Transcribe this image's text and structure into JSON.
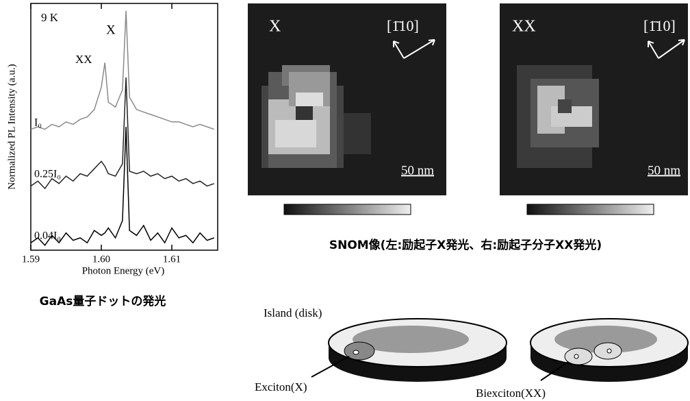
{
  "chart_data": {
    "type": "line",
    "xlabel": "Photon Energy (eV)",
    "ylabel": "Normalized PL Intensity (a.u.)",
    "annotations": [
      "9 K",
      "X",
      "XX"
    ],
    "x": [
      1.59,
      1.591,
      1.592,
      1.593,
      1.594,
      1.595,
      1.596,
      1.597,
      1.598,
      1.599,
      1.6,
      1.6005,
      1.601,
      1.602,
      1.603,
      1.6035,
      1.604,
      1.605,
      1.606,
      1.607,
      1.608,
      1.609,
      1.61,
      1.611,
      1.612,
      1.613,
      1.614,
      1.615,
      1.616
    ],
    "series": [
      {
        "name": "I₀",
        "color": "#8a8a8a",
        "values": [
          4.9,
          5.0,
          4.9,
          5.1,
          5.0,
          5.2,
          5.1,
          5.3,
          5.4,
          5.7,
          6.6,
          7.6,
          6.0,
          5.8,
          6.5,
          9.7,
          6.2,
          5.7,
          5.6,
          5.5,
          5.4,
          5.3,
          5.2,
          5.2,
          5.1,
          5.0,
          5.1,
          5.0,
          4.9
        ]
      },
      {
        "name": "0.25I₀",
        "color": "#222222",
        "values": [
          2.6,
          2.8,
          2.5,
          2.9,
          2.7,
          3.0,
          2.8,
          3.1,
          3.0,
          3.3,
          3.6,
          3.4,
          3.1,
          3.0,
          3.5,
          7.0,
          3.2,
          3.1,
          3.2,
          3.0,
          3.1,
          2.9,
          3.0,
          2.8,
          2.9,
          2.7,
          2.8,
          2.6,
          2.7
        ]
      },
      {
        "name": "0.04I₀",
        "color": "#000000",
        "values": [
          0.3,
          0.5,
          0.2,
          0.6,
          0.3,
          0.7,
          0.4,
          0.5,
          0.3,
          0.8,
          0.6,
          0.7,
          0.9,
          0.5,
          1.2,
          5.0,
          0.8,
          0.6,
          1.0,
          0.4,
          0.7,
          0.3,
          0.9,
          0.5,
          0.6,
          0.3,
          0.7,
          0.4,
          0.5
        ]
      }
    ],
    "xlim": [
      1.59,
      1.6165
    ],
    "xticks": [
      1.59,
      {
        "value": 1.6,
        "label": "1.60"
      },
      1.61
    ],
    "ylim": [
      0,
      10
    ]
  },
  "figure": {
    "spectrum_caption": "GaAs量子ドットの発光",
    "snom": {
      "panels": [
        {
          "label": "X",
          "direction": "[1̄10]",
          "scale": "50 nm"
        },
        {
          "label": "XX",
          "direction": "[1̄10]",
          "scale": "50 nm"
        }
      ],
      "caption": "SNOM像(左:励起子X発光、右:励起子分子XX発光)"
    },
    "diagram": {
      "island": "Island (disk)",
      "exciton": "Exciton(X)",
      "biexciton": "Biexciton(XX)"
    }
  }
}
